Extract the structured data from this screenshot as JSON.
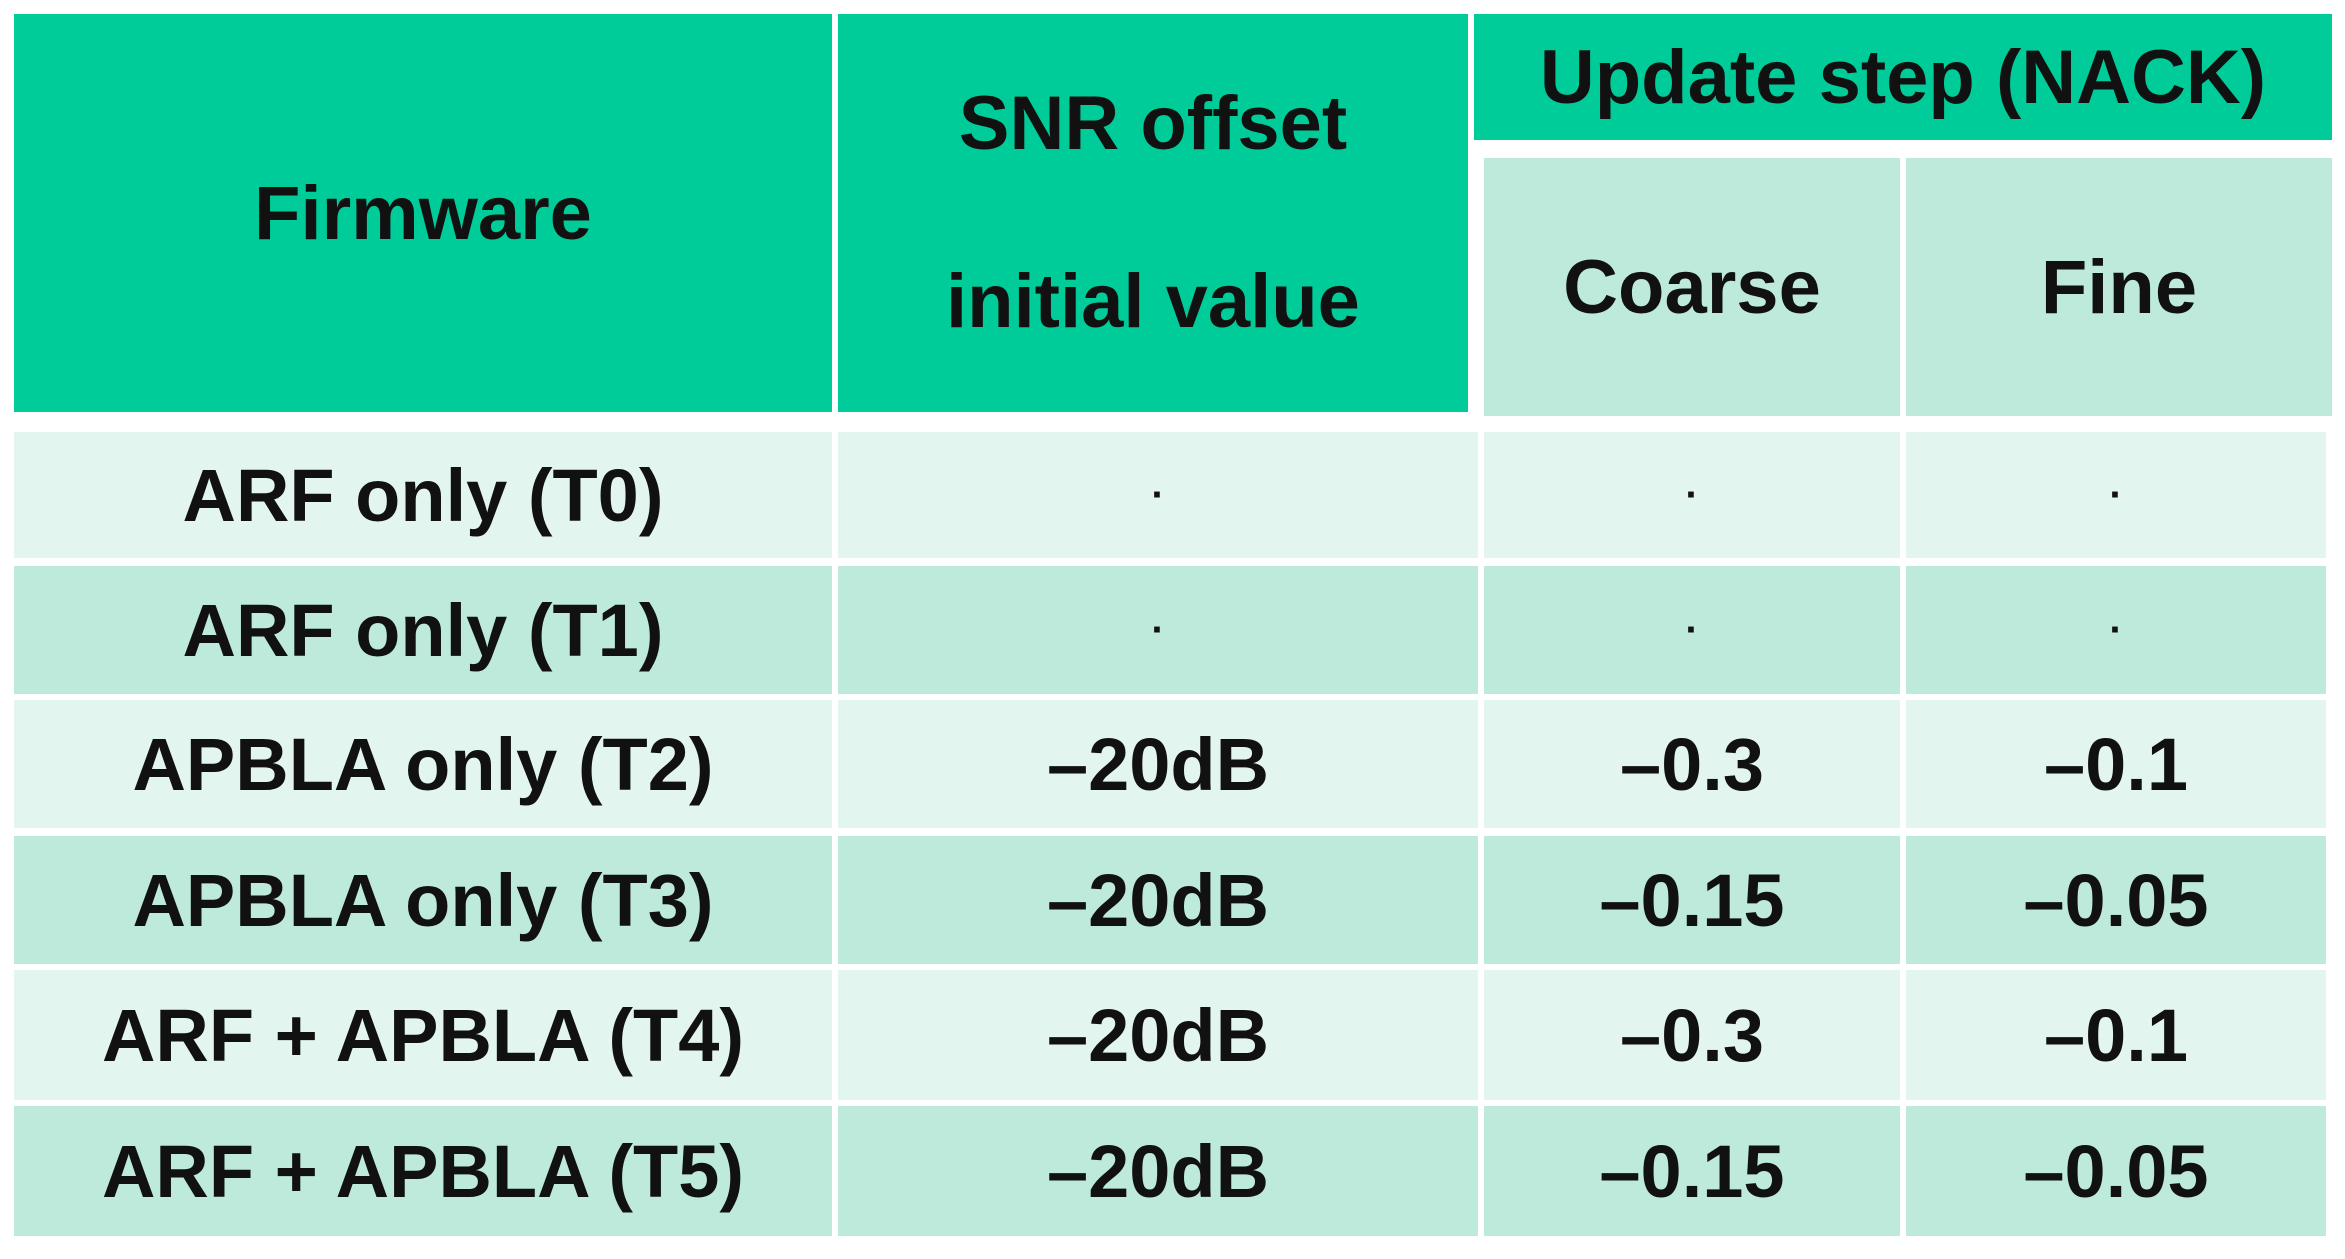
{
  "table": {
    "headers": {
      "firmware": "Firmware",
      "snr_line1": "SNR offset",
      "snr_line2": "initial  value",
      "update_step": "Update step (NACK)",
      "coarse": "Coarse",
      "fine": "Fine"
    },
    "rows": [
      {
        "firmware": "ARF only (T0)",
        "snr": "·",
        "coarse": "·",
        "fine": "·"
      },
      {
        "firmware": "ARF only (T1)",
        "snr": "·",
        "coarse": "·",
        "fine": "·"
      },
      {
        "firmware": "APBLA only (T2)",
        "snr": "–20dB",
        "coarse": "–0.3",
        "fine": "–0.1"
      },
      {
        "firmware": "APBLA only (T3)",
        "snr": "–20dB",
        "coarse": "–0.15",
        "fine": "–0.05"
      },
      {
        "firmware": "ARF + APBLA (T4)",
        "snr": "–20dB",
        "coarse": "–0.3",
        "fine": "–0.1"
      },
      {
        "firmware": "ARF + APBLA  (T5)",
        "snr": "–20dB",
        "coarse": "–0.15",
        "fine": "–0.05"
      }
    ]
  },
  "colors": {
    "header": "#00cc99",
    "subheader": "#bdeada",
    "row_light": "#e3f5ef",
    "row_dark": "#bdeada"
  }
}
